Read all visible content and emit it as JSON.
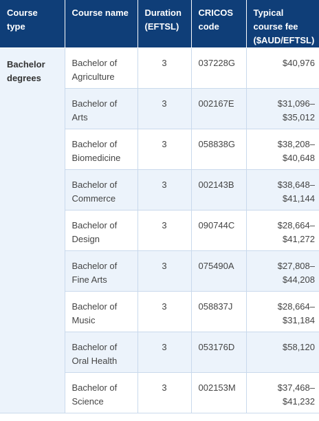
{
  "headers": {
    "course_type": "Course type",
    "course_name": "Course name",
    "duration": "Duration (EFTSL)",
    "cricos": "CRICOS code",
    "fee": "Typical course fee ($AUD/EFTSL)"
  },
  "course_type_group": "Bachelor degrees",
  "rows": [
    {
      "name": "Bachelor of Agriculture",
      "duration": "3",
      "cricos": "037228G",
      "fee": "$40,976"
    },
    {
      "name": "Bachelor of Arts",
      "duration": "3",
      "cricos": "002167E",
      "fee": "$31,096–$35,012"
    },
    {
      "name": "Bachelor of Biomedicine",
      "duration": "3",
      "cricos": "058838G",
      "fee": "$38,208–$40,648"
    },
    {
      "name": "Bachelor of Commerce",
      "duration": "3",
      "cricos": "002143B",
      "fee": "$38,648–$41,144"
    },
    {
      "name": "Bachelor of Design",
      "duration": "3",
      "cricos": "090744C",
      "fee": "$28,664–$41,272"
    },
    {
      "name": "Bachelor of Fine Arts",
      "duration": "3",
      "cricos": "075490A",
      "fee": "$27,808–$44,208"
    },
    {
      "name": "Bachelor of Music",
      "duration": "3",
      "cricos": "058837J",
      "fee": "$28,664–$31,184"
    },
    {
      "name": "Bachelor of Oral Health",
      "duration": "3",
      "cricos": "053176D",
      "fee": "$58,120"
    },
    {
      "name": "Bachelor of Science",
      "duration": "3",
      "cricos": "002153M",
      "fee": "$37,468–$41,232"
    }
  ],
  "colors": {
    "header_bg": "#0f3e78",
    "row_alt_bg": "#ecf3fb",
    "border": "#c9d9ec"
  }
}
